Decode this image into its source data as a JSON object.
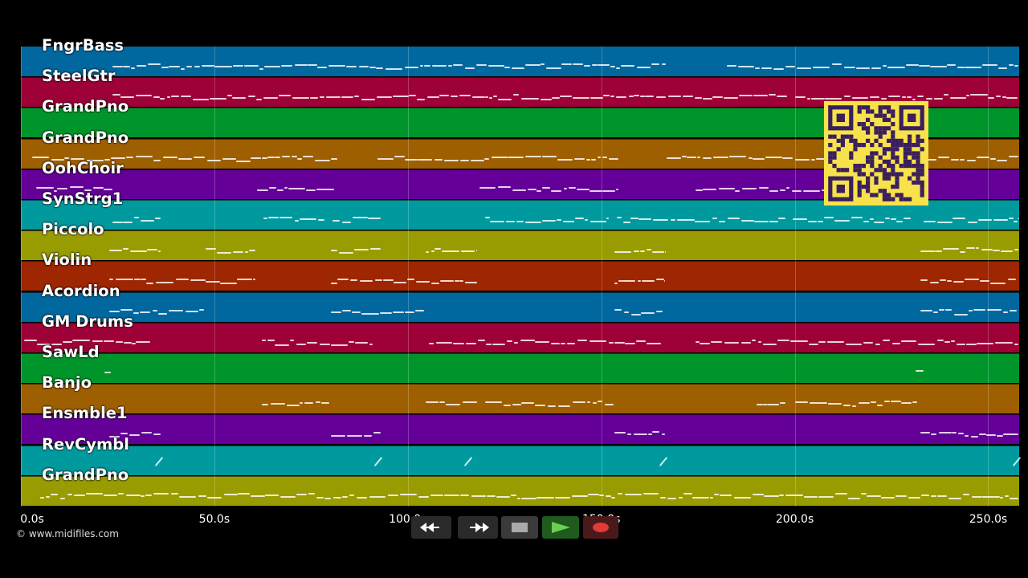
{
  "window": {
    "title": ""
  },
  "tracks": [
    {
      "name": "FngrBass",
      "color": "#00689e"
    },
    {
      "name": "SteelGtr",
      "color": "#9e0038"
    },
    {
      "name": "GrandPno",
      "color": "#00952a"
    },
    {
      "name": "GrandPno",
      "color": "#9e5f00"
    },
    {
      "name": "OohChoir",
      "color": "#640098"
    },
    {
      "name": "SynStrg1",
      "color": "#00999e"
    },
    {
      "name": "Piccolo",
      "color": "#999c00"
    },
    {
      "name": "Violin",
      "color": "#9e2600"
    },
    {
      "name": "Acordion",
      "color": "#00689e"
    },
    {
      "name": "GM Drums",
      "color": "#9e0038"
    },
    {
      "name": "SawLd",
      "color": "#00952a"
    },
    {
      "name": "Banjo",
      "color": "#9e5f00"
    },
    {
      "name": "Ensmble1",
      "color": "#640098"
    },
    {
      "name": "RevCymbl",
      "color": "#00999e"
    },
    {
      "name": "GrandPno",
      "color": "#999c00"
    }
  ],
  "timeline": {
    "ticks": [
      {
        "seconds": 0,
        "label": "0.0s"
      },
      {
        "seconds": 50,
        "label": "50.0s"
      },
      {
        "seconds": 100,
        "label": "100.0s"
      },
      {
        "seconds": 150,
        "label": "150.0s"
      },
      {
        "seconds": 200,
        "label": "200.0s"
      },
      {
        "seconds": 250,
        "label": "250.0s"
      }
    ],
    "range_seconds": [
      0,
      258
    ]
  },
  "footer": {
    "copyright": "© www.midifiles.com"
  },
  "controls": {
    "rewind": {
      "icon": "rewind-icon"
    },
    "fast_forward": {
      "icon": "fast-forward-icon"
    },
    "stop": {
      "icon": "stop-icon"
    },
    "play": {
      "icon": "play-icon",
      "color": "#6ccf4d"
    },
    "record": {
      "icon": "record-icon",
      "color": "#e23a3a"
    }
  },
  "qr_code": {
    "icon": "qr-code-icon",
    "color": "#f7e24b"
  }
}
